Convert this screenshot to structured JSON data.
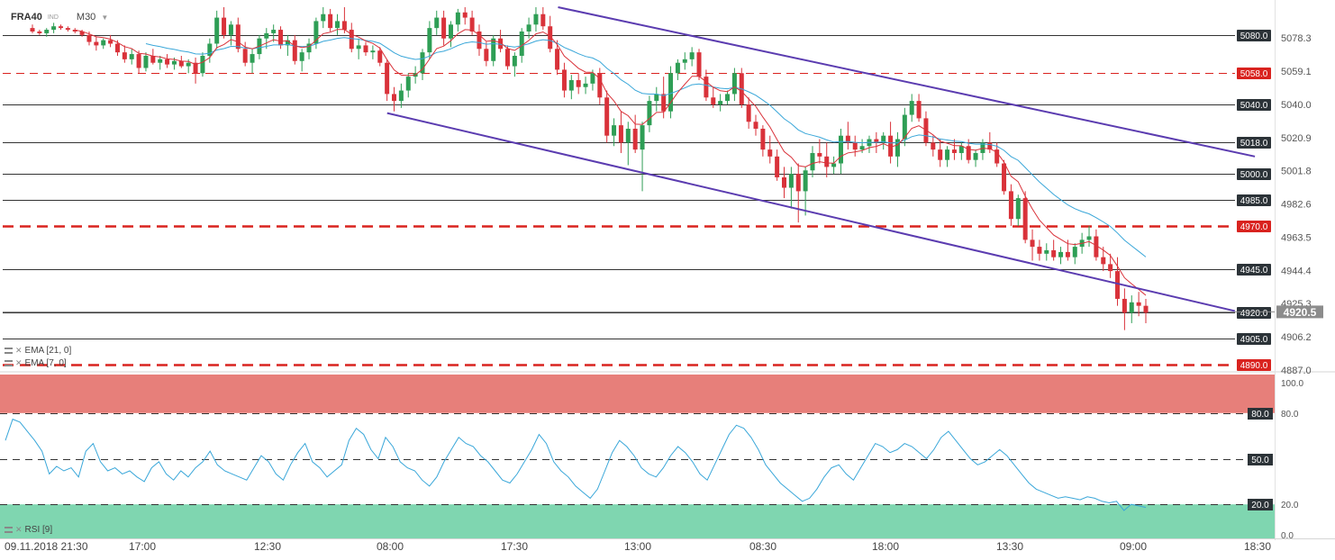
{
  "header": {
    "symbol": "FRA40",
    "tag": "IND",
    "timeframe": "M30"
  },
  "indicators": {
    "ema21": "EMA [21, 0]",
    "ema7": "EMA [7, 0]",
    "rsi": "RSI [9]"
  },
  "colors": {
    "bull": "#2e9e55",
    "bear": "#d9323a",
    "ema_fast": "#d9323a",
    "ema_slow": "#3aa7d9",
    "channel": "#5b3cb0",
    "rsi_line": "#3aa7d9",
    "overbought": "#e77f7a",
    "oversold": "#7fd6b0",
    "level_dark": "#2c3338",
    "level_red": "#d9231f"
  },
  "chart_data": {
    "type": "candlestick",
    "symbol": "FRA40",
    "timeframe": "M30",
    "x_tick_labels": [
      "09.11.2018 21:30",
      "17:00",
      "12:30",
      "08:00",
      "17:30",
      "13:00",
      "08:30",
      "18:00",
      "13:30",
      "09:00",
      "18:30"
    ],
    "y_axis_ticks": [
      "5078.3",
      "5059.1",
      "5040.0",
      "5020.9",
      "5001.8",
      "4982.6",
      "4963.5",
      "4944.4",
      "4925.3",
      "4906.2",
      "4887.0"
    ],
    "ylim": [
      4887.0,
      5096
    ],
    "last_price": "4920.5",
    "levels": [
      {
        "value": 5080.0,
        "label": "5080.0",
        "style": "solid"
      },
      {
        "value": 5058.0,
        "label": "5058.0",
        "style": "dashed"
      },
      {
        "value": 5040.0,
        "label": "5040.0",
        "style": "solid"
      },
      {
        "value": 5018.0,
        "label": "5018.0",
        "style": "solid"
      },
      {
        "value": 5000.0,
        "label": "5000.0",
        "style": "solid"
      },
      {
        "value": 4985.0,
        "label": "4985.0",
        "style": "solid"
      },
      {
        "value": 4970.0,
        "label": "4970.0",
        "style": "dashed-bold"
      },
      {
        "value": 4945.0,
        "label": "4945.0",
        "style": "solid"
      },
      {
        "value": 4920.0,
        "label": "4920.0",
        "style": "solid"
      },
      {
        "value": 4905.0,
        "label": "4905.0",
        "style": "solid"
      },
      {
        "value": 4890.0,
        "label": "4890.0",
        "style": "dashed-bold"
      }
    ],
    "channel": {
      "upper": [
        [
          0.418,
          5096
        ],
        [
          0.94,
          5010
        ]
      ],
      "lower": [
        [
          0.29,
          5035
        ],
        [
          0.925,
          4921
        ]
      ]
    },
    "rsi": {
      "levels": [
        {
          "value": 80,
          "label": "80.0"
        },
        {
          "value": 50,
          "label": "50.0"
        },
        {
          "value": 20,
          "label": "20.0"
        }
      ],
      "axis_ticks": [
        "100.0",
        "80.0",
        "20.0",
        "0.0"
      ],
      "values": [
        62,
        76,
        74,
        68,
        62,
        55,
        40,
        45,
        42,
        44,
        38,
        55,
        60,
        48,
        42,
        44,
        40,
        42,
        38,
        35,
        44,
        48,
        40,
        36,
        42,
        38,
        44,
        48,
        55,
        46,
        42,
        40,
        38,
        36,
        44,
        52,
        48,
        40,
        36,
        46,
        54,
        60,
        48,
        44,
        38,
        42,
        46,
        62,
        70,
        66,
        56,
        50,
        64,
        58,
        48,
        44,
        42,
        36,
        32,
        38,
        48,
        56,
        64,
        60,
        58,
        52,
        48,
        42,
        36,
        34,
        40,
        48,
        56,
        66,
        60,
        48,
        42,
        38,
        32,
        28,
        24,
        30,
        42,
        54,
        62,
        58,
        52,
        44,
        40,
        38,
        44,
        52,
        58,
        54,
        48,
        40,
        36,
        46,
        56,
        66,
        72,
        70,
        64,
        56,
        46,
        40,
        34,
        30,
        26,
        22,
        24,
        30,
        38,
        44,
        46,
        40,
        36,
        44,
        52,
        60,
        58,
        54,
        56,
        60,
        58,
        54,
        50,
        56,
        64,
        68,
        62,
        56,
        50,
        46,
        48,
        52,
        56,
        52,
        46,
        40,
        34,
        30,
        28,
        26,
        24,
        25,
        24,
        23,
        25,
        24,
        22,
        21,
        22,
        16,
        20,
        19,
        18
      ]
    },
    "candles": [
      [
        5084,
        5086,
        5081,
        5082
      ],
      [
        5082,
        5083,
        5080,
        5081
      ],
      [
        5081,
        5084,
        5079,
        5083
      ],
      [
        5083,
        5087,
        5081,
        5085
      ],
      [
        5085,
        5086,
        5083,
        5084
      ],
      [
        5084,
        5085,
        5082,
        5083
      ],
      [
        5083,
        5084,
        5081,
        5082
      ],
      [
        5082,
        5083,
        5079,
        5080
      ],
      [
        5080,
        5082,
        5074,
        5076
      ],
      [
        5076,
        5079,
        5071,
        5074
      ],
      [
        5074,
        5078,
        5072,
        5077
      ],
      [
        5077,
        5080,
        5073,
        5075
      ],
      [
        5075,
        5077,
        5068,
        5070
      ],
      [
        5070,
        5074,
        5064,
        5066
      ],
      [
        5066,
        5072,
        5063,
        5069
      ],
      [
        5069,
        5071,
        5058,
        5061
      ],
      [
        5061,
        5070,
        5059,
        5068
      ],
      [
        5068,
        5072,
        5063,
        5064
      ],
      [
        5064,
        5068,
        5060,
        5066
      ],
      [
        5066,
        5069,
        5061,
        5063
      ],
      [
        5063,
        5067,
        5060,
        5065
      ],
      [
        5065,
        5068,
        5061,
        5062
      ],
      [
        5062,
        5066,
        5058,
        5064
      ],
      [
        5064,
        5067,
        5052,
        5058
      ],
      [
        5058,
        5070,
        5056,
        5068
      ],
      [
        5068,
        5078,
        5064,
        5075
      ],
      [
        5075,
        5094,
        5072,
        5090
      ],
      [
        5090,
        5096,
        5078,
        5080
      ],
      [
        5080,
        5088,
        5074,
        5086
      ],
      [
        5086,
        5090,
        5070,
        5072
      ],
      [
        5072,
        5076,
        5062,
        5064
      ],
      [
        5064,
        5072,
        5058,
        5069
      ],
      [
        5069,
        5080,
        5066,
        5078
      ],
      [
        5078,
        5084,
        5072,
        5081
      ],
      [
        5081,
        5086,
        5076,
        5083
      ],
      [
        5083,
        5085,
        5072,
        5074
      ],
      [
        5074,
        5080,
        5068,
        5077
      ],
      [
        5077,
        5080,
        5063,
        5065
      ],
      [
        5065,
        5072,
        5059,
        5070
      ],
      [
        5070,
        5078,
        5066,
        5075
      ],
      [
        5075,
        5090,
        5072,
        5088
      ],
      [
        5088,
        5096,
        5084,
        5092
      ],
      [
        5092,
        5095,
        5082,
        5084
      ],
      [
        5084,
        5092,
        5080,
        5088
      ],
      [
        5088,
        5096,
        5081,
        5083
      ],
      [
        5083,
        5087,
        5070,
        5072
      ],
      [
        5072,
        5078,
        5066,
        5074
      ],
      [
        5074,
        5076,
        5068,
        5070
      ],
      [
        5070,
        5074,
        5066,
        5071
      ],
      [
        5071,
        5073,
        5062,
        5064
      ],
      [
        5064,
        5066,
        5042,
        5046
      ],
      [
        5046,
        5050,
        5036,
        5042
      ],
      [
        5042,
        5052,
        5038,
        5048
      ],
      [
        5048,
        5058,
        5044,
        5056
      ],
      [
        5056,
        5062,
        5052,
        5058
      ],
      [
        5058,
        5072,
        5054,
        5070
      ],
      [
        5070,
        5088,
        5066,
        5084
      ],
      [
        5084,
        5094,
        5080,
        5090
      ],
      [
        5090,
        5094,
        5074,
        5078
      ],
      [
        5078,
        5088,
        5073,
        5086
      ],
      [
        5086,
        5095,
        5082,
        5093
      ],
      [
        5093,
        5096,
        5086,
        5090
      ],
      [
        5090,
        5094,
        5080,
        5082
      ],
      [
        5082,
        5086,
        5068,
        5072
      ],
      [
        5072,
        5076,
        5062,
        5065
      ],
      [
        5065,
        5080,
        5062,
        5078
      ],
      [
        5078,
        5083,
        5070,
        5072
      ],
      [
        5072,
        5074,
        5060,
        5062
      ],
      [
        5062,
        5070,
        5056,
        5068
      ],
      [
        5068,
        5084,
        5064,
        5082
      ],
      [
        5082,
        5090,
        5078,
        5086
      ],
      [
        5086,
        5096,
        5082,
        5092
      ],
      [
        5092,
        5096,
        5083,
        5085
      ],
      [
        5085,
        5091,
        5070,
        5072
      ],
      [
        5072,
        5077,
        5057,
        5060
      ],
      [
        5060,
        5064,
        5044,
        5048
      ],
      [
        5048,
        5057,
        5043,
        5054
      ],
      [
        5054,
        5058,
        5046,
        5050
      ],
      [
        5050,
        5056,
        5046,
        5052
      ],
      [
        5052,
        5060,
        5048,
        5058
      ],
      [
        5058,
        5061,
        5040,
        5044
      ],
      [
        5044,
        5048,
        5018,
        5022
      ],
      [
        5022,
        5032,
        5016,
        5028
      ],
      [
        5028,
        5036,
        5012,
        5018
      ],
      [
        5018,
        5030,
        5005,
        5026
      ],
      [
        5026,
        5034,
        5012,
        5014
      ],
      [
        5014,
        5030,
        4990,
        5028
      ],
      [
        5028,
        5045,
        5024,
        5042
      ],
      [
        5042,
        5050,
        5036,
        5046
      ],
      [
        5046,
        5056,
        5032,
        5036
      ],
      [
        5036,
        5062,
        5032,
        5058
      ],
      [
        5058,
        5066,
        5054,
        5064
      ],
      [
        5064,
        5070,
        5060,
        5066
      ],
      [
        5066,
        5073,
        5062,
        5070
      ],
      [
        5070,
        5072,
        5054,
        5056
      ],
      [
        5056,
        5060,
        5042,
        5044
      ],
      [
        5044,
        5050,
        5038,
        5040
      ],
      [
        5040,
        5046,
        5036,
        5042
      ],
      [
        5042,
        5048,
        5040,
        5046
      ],
      [
        5046,
        5061,
        5042,
        5058
      ],
      [
        5058,
        5061,
        5038,
        5040
      ],
      [
        5040,
        5044,
        5026,
        5030
      ],
      [
        5030,
        5034,
        5022,
        5026
      ],
      [
        5026,
        5028,
        5010,
        5014
      ],
      [
        5014,
        5022,
        5006,
        5010
      ],
      [
        5010,
        5014,
        4996,
        4998
      ],
      [
        4998,
        5004,
        4986,
        4992
      ],
      [
        4992,
        5004,
        4980,
        5000
      ],
      [
        5000,
        5006,
        4972,
        4990
      ],
      [
        4990,
        5004,
        4976,
        5002
      ],
      [
        5002,
        5016,
        4998,
        5012
      ],
      [
        5012,
        5020,
        5006,
        5010
      ],
      [
        5010,
        5018,
        4998,
        5004
      ],
      [
        5004,
        5010,
        5000,
        5006
      ],
      [
        5006,
        5026,
        5000,
        5022
      ],
      [
        5022,
        5030,
        5014,
        5018
      ],
      [
        5018,
        5022,
        5010,
        5014
      ],
      [
        5014,
        5020,
        5012,
        5016
      ],
      [
        5016,
        5022,
        5012,
        5020
      ],
      [
        5020,
        5024,
        5012,
        5018
      ],
      [
        5018,
        5024,
        5014,
        5022
      ],
      [
        5022,
        5030,
        5006,
        5010
      ],
      [
        5010,
        5024,
        5004,
        5020
      ],
      [
        5020,
        5038,
        5016,
        5034
      ],
      [
        5034,
        5046,
        5030,
        5042
      ],
      [
        5042,
        5046,
        5030,
        5032
      ],
      [
        5032,
        5036,
        5016,
        5018
      ],
      [
        5018,
        5022,
        5010,
        5014
      ],
      [
        5014,
        5020,
        5004,
        5008
      ],
      [
        5008,
        5016,
        5004,
        5014
      ],
      [
        5014,
        5020,
        5008,
        5012
      ],
      [
        5012,
        5018,
        5008,
        5016
      ],
      [
        5016,
        5020,
        5006,
        5008
      ],
      [
        5008,
        5014,
        5004,
        5012
      ],
      [
        5012,
        5020,
        5008,
        5018
      ],
      [
        5018,
        5024,
        5012,
        5014
      ],
      [
        5014,
        5018,
        5004,
        5006
      ],
      [
        5006,
        5008,
        4988,
        4990
      ],
      [
        4990,
        4994,
        4970,
        4974
      ],
      [
        4974,
        4988,
        4970,
        4986
      ],
      [
        4986,
        4990,
        4960,
        4962
      ],
      [
        4962,
        4968,
        4950,
        4958
      ],
      [
        4958,
        4962,
        4950,
        4954
      ],
      [
        4954,
        4960,
        4950,
        4956
      ],
      [
        4956,
        4962,
        4950,
        4952
      ],
      [
        4952,
        4958,
        4948,
        4955
      ],
      [
        4955,
        4962,
        4950,
        4952
      ],
      [
        4952,
        4960,
        4948,
        4958
      ],
      [
        4958,
        4966,
        4954,
        4962
      ],
      [
        4962,
        4970,
        4958,
        4964
      ],
      [
        4964,
        4968,
        4950,
        4952
      ],
      [
        4952,
        4958,
        4944,
        4948
      ],
      [
        4948,
        4954,
        4940,
        4944
      ],
      [
        4944,
        4952,
        4924,
        4928
      ],
      [
        4928,
        4934,
        4910,
        4920
      ],
      [
        4920,
        4930,
        4914,
        4926
      ],
      [
        4926,
        4932,
        4918,
        4924
      ],
      [
        4924,
        4928,
        4914,
        4920
      ]
    ]
  }
}
